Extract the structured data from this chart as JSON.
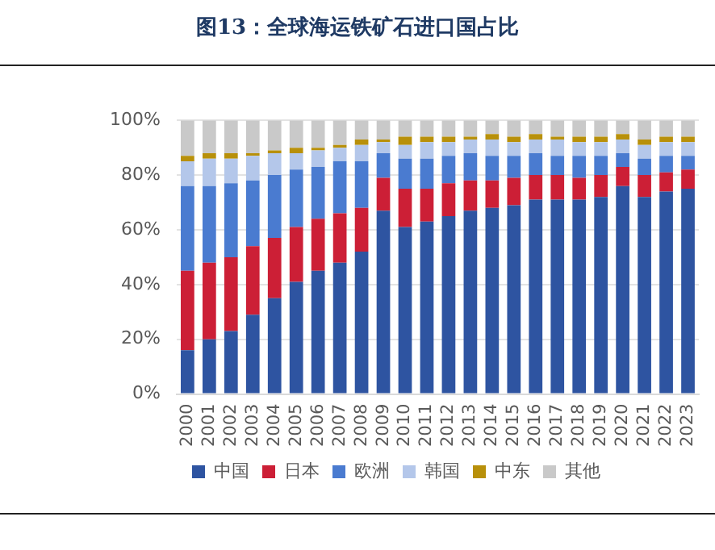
{
  "chart_data": {
    "type": "bar",
    "title": "图13：全球海运铁矿石进口国占比",
    "stacked": true,
    "legend": "bottom",
    "grid": "y",
    "categories": [
      "2000",
      "2001",
      "2002",
      "2003",
      "2004",
      "2005",
      "2006",
      "2007",
      "2008",
      "2009",
      "2010",
      "2011",
      "2012",
      "2013",
      "2014",
      "2015",
      "2016",
      "2017",
      "2018",
      "2019",
      "2020",
      "2021",
      "2022",
      "2023"
    ],
    "ylim": [
      0,
      100
    ],
    "yticks": [
      {
        "value": 0,
        "label": "0%"
      },
      {
        "value": 20,
        "label": "20%"
      },
      {
        "value": 40,
        "label": "40%"
      },
      {
        "value": 60,
        "label": "60%"
      },
      {
        "value": 80,
        "label": "80%"
      },
      {
        "value": 100,
        "label": "100%"
      }
    ],
    "series": [
      {
        "name": "中国",
        "color": "#2e54a1",
        "values": [
          16,
          20,
          23,
          29,
          35,
          41,
          45,
          48,
          52,
          67,
          61,
          63,
          65,
          67,
          68,
          69,
          71,
          71,
          71,
          72,
          76,
          72,
          74,
          75
        ]
      },
      {
        "name": "日本",
        "color": "#cc1f36",
        "values": [
          29,
          28,
          27,
          25,
          22,
          20,
          19,
          18,
          16,
          12,
          14,
          12,
          12,
          11,
          10,
          10,
          9,
          9,
          8,
          8,
          7,
          8,
          7,
          7
        ]
      },
      {
        "name": "欧洲",
        "color": "#4a7bd0",
        "values": [
          31,
          28,
          27,
          24,
          23,
          21,
          19,
          19,
          17,
          9,
          11,
          11,
          10,
          10,
          9,
          8,
          8,
          7,
          8,
          7,
          5,
          6,
          6,
          5
        ]
      },
      {
        "name": "韩国",
        "color": "#b4c7ea",
        "values": [
          9,
          10,
          9,
          9,
          8,
          6,
          6,
          5,
          6,
          4,
          5,
          6,
          5,
          5,
          6,
          5,
          5,
          6,
          5,
          5,
          5,
          5,
          5,
          5
        ]
      },
      {
        "name": "中东",
        "color": "#b8900a",
        "values": [
          2,
          2,
          2,
          1,
          1,
          2,
          1,
          1,
          2,
          1,
          3,
          2,
          2,
          1,
          2,
          2,
          2,
          1,
          2,
          2,
          2,
          2,
          2,
          2
        ]
      },
      {
        "name": "其他",
        "color": "#c9c9c9",
        "values": [
          13,
          12,
          12,
          12,
          11,
          10,
          10,
          9,
          7,
          7,
          6,
          6,
          6,
          6,
          5,
          6,
          5,
          6,
          6,
          6,
          5,
          7,
          6,
          6
        ]
      }
    ]
  }
}
